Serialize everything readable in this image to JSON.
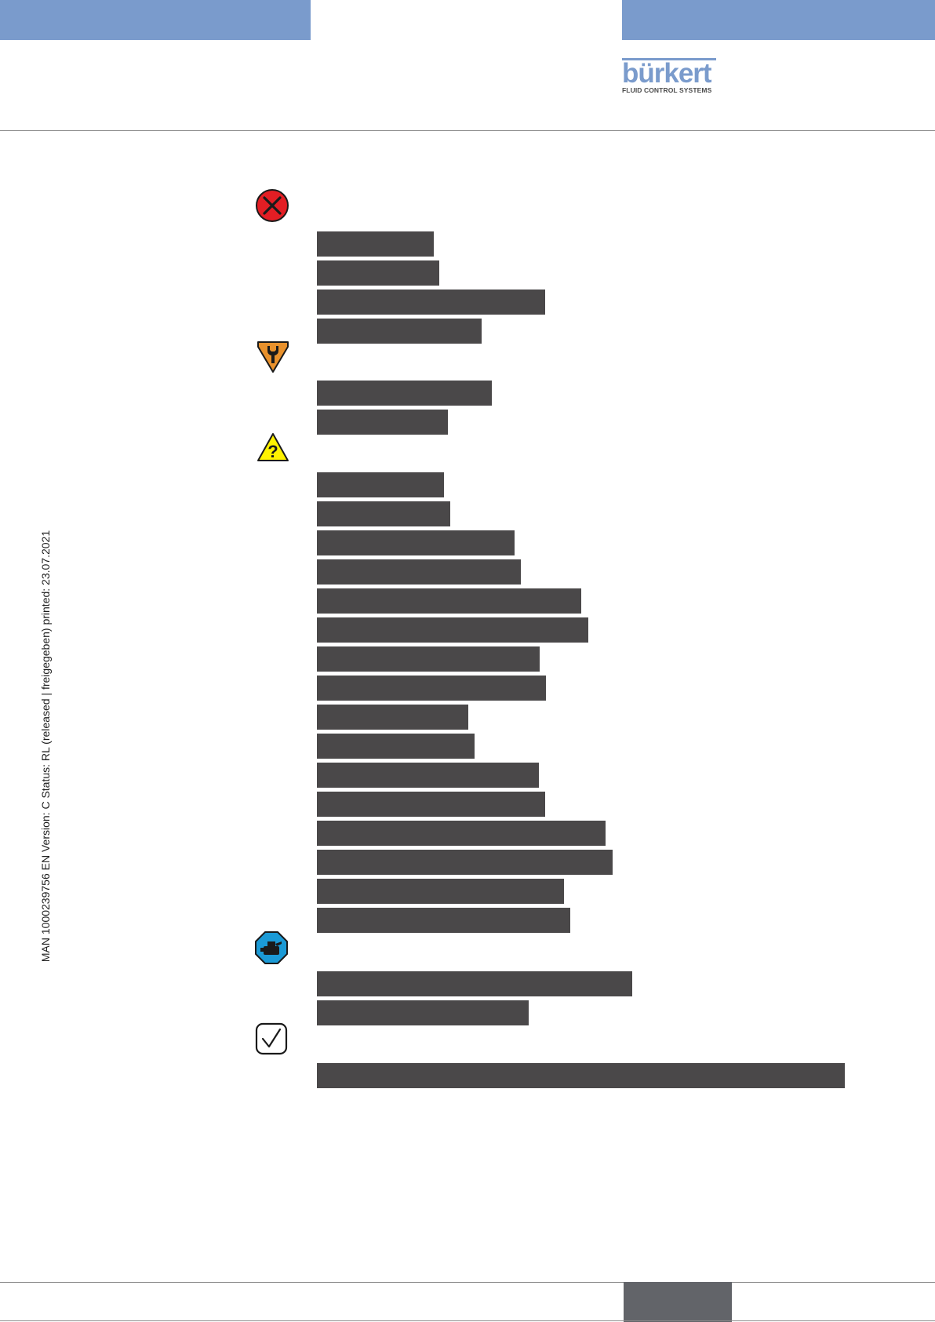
{
  "brand": {
    "name": "bürkert",
    "tagline": "FLUID CONTROL SYSTEMS",
    "color": "#7a9bcc"
  },
  "side_note": "MAN  1000239756  EN  Version: C Status: RL (released | freigegeben)  printed: 23.07.2021",
  "sections": [
    {
      "icon": "failure-x-icon",
      "redacted_lines": 4
    },
    {
      "icon": "maintenance-wrench-icon",
      "redacted_lines": 2
    },
    {
      "icon": "out-of-specification-question-icon",
      "redacted_lines": 16
    },
    {
      "icon": "function-check-icon",
      "redacted_lines": 2
    },
    {
      "icon": "checkmark-ok-icon",
      "redacted_lines": 1
    }
  ],
  "colors": {
    "failure": "#e31e24",
    "maintenance": "#e8912c",
    "out_of_spec": "#fff200",
    "function_check": "#1b9ad6",
    "redaction": "#4a4849",
    "footer_box": "#626469"
  }
}
